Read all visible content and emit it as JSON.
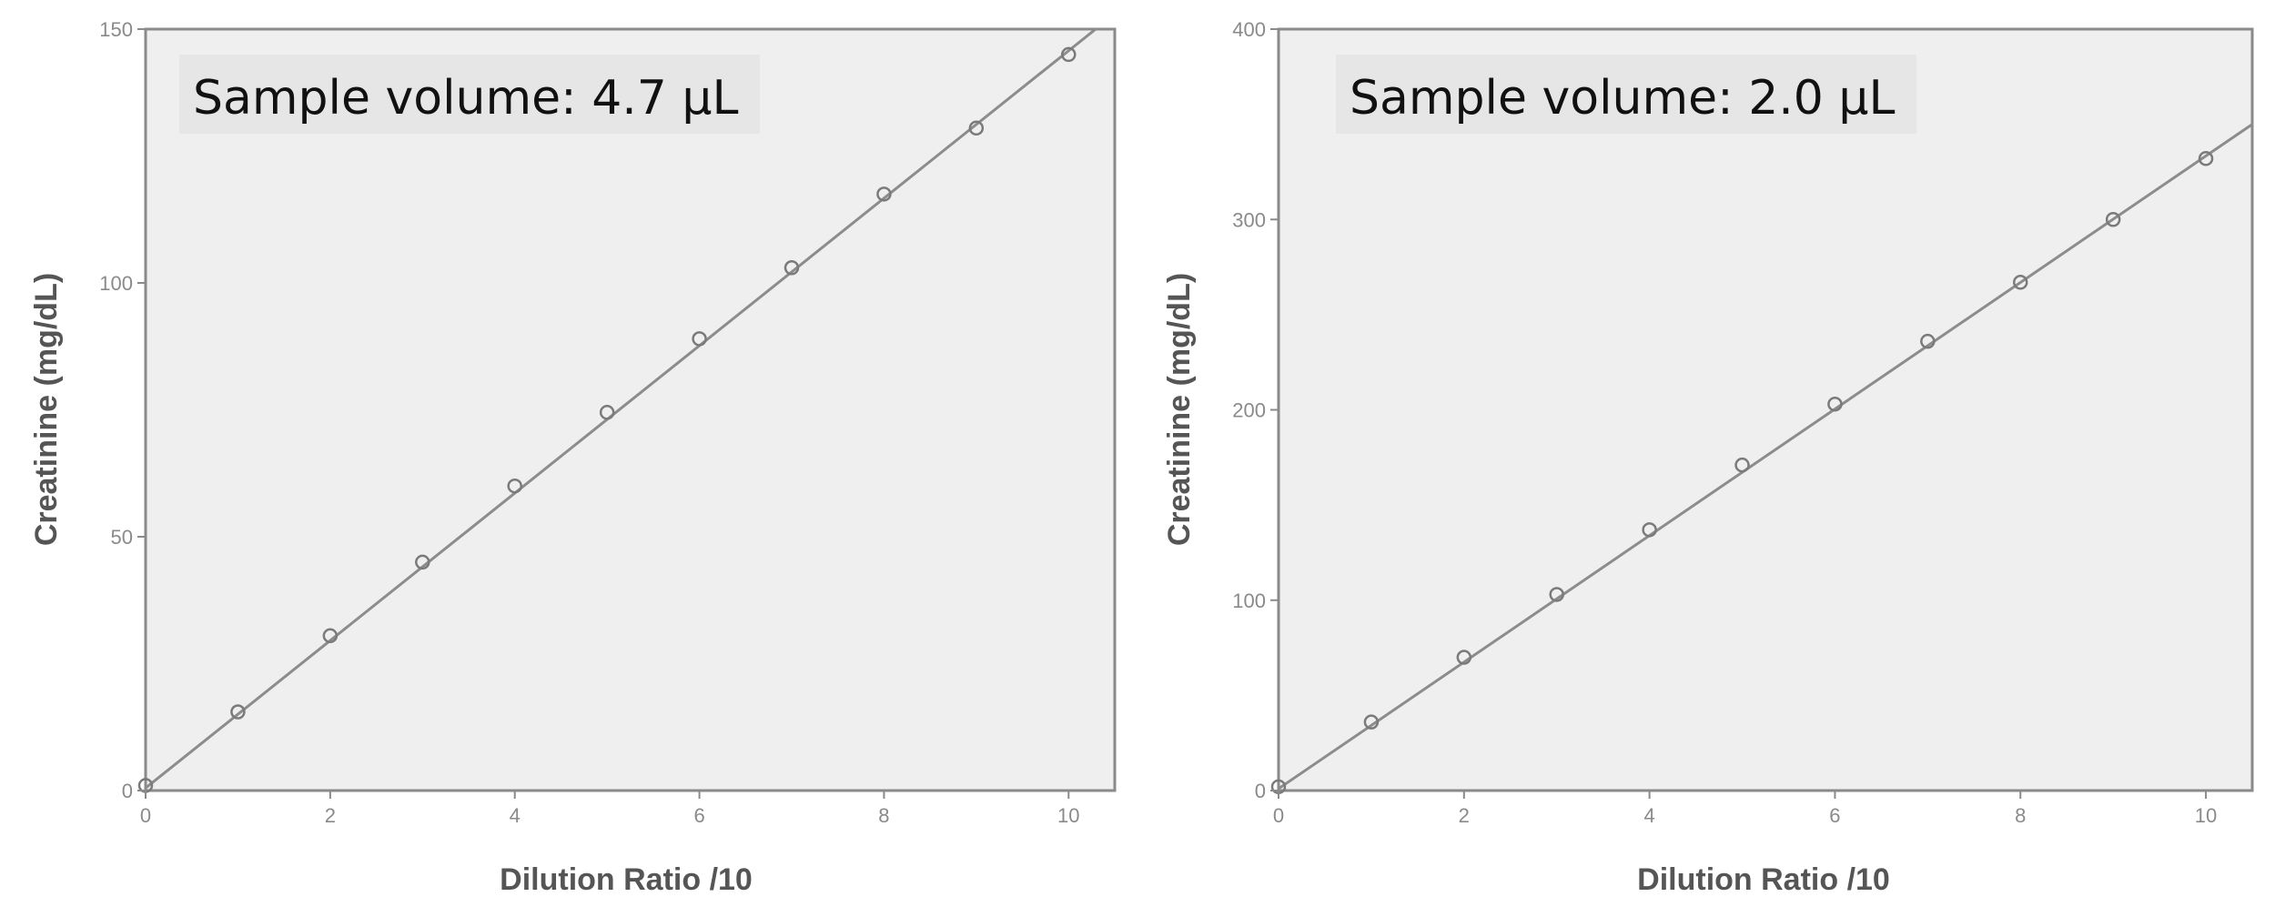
{
  "chart_data": [
    {
      "type": "scatter",
      "annotation": "Sample volume: 4.7 µL",
      "xlabel": "Dilution Ratio /10",
      "ylabel": "Creatinine (mg/dL)",
      "xlim": [
        0,
        10.5
      ],
      "ylim": [
        0,
        150
      ],
      "xticks": [
        0,
        2,
        4,
        6,
        8,
        10
      ],
      "yticks": [
        0,
        50,
        100,
        150
      ],
      "xtick_labels": [
        "0",
        "2",
        "4",
        "6",
        "8",
        "10"
      ],
      "ytick_labels": [
        "0",
        "50",
        "100",
        "150"
      ],
      "x": [
        0,
        1,
        2,
        3,
        4,
        5,
        6,
        7,
        8,
        9,
        10
      ],
      "y": [
        1,
        15.5,
        30.5,
        45,
        60,
        74.5,
        89,
        103,
        117.5,
        130.5,
        145
      ],
      "fit_line": {
        "x": [
          0,
          10.5
        ],
        "y": [
          0.5,
          153
        ]
      },
      "grid": false,
      "colors": {
        "plot_bg": "#efefef",
        "frame": "#8a8a8a",
        "marker": "#7a7a7a",
        "line": "#8c8c8c",
        "annot_bg": "#e6e6e6"
      }
    },
    {
      "type": "scatter",
      "annotation": "Sample volume: 2.0 µL",
      "xlabel": "Dilution Ratio /10",
      "ylabel": "Creatinine (mg/dL)",
      "xlim": [
        0,
        10.5
      ],
      "ylim": [
        0,
        400
      ],
      "xticks": [
        0,
        2,
        4,
        6,
        8,
        10
      ],
      "yticks": [
        0,
        100,
        200,
        300,
        400
      ],
      "xtick_labels": [
        "0",
        "2",
        "4",
        "6",
        "8",
        "10"
      ],
      "ytick_labels": [
        "0",
        "100",
        "200",
        "300",
        "400"
      ],
      "x": [
        0,
        1,
        2,
        3,
        4,
        5,
        6,
        7,
        8,
        9,
        10
      ],
      "y": [
        2,
        36,
        70,
        103,
        137,
        171,
        203,
        236,
        267,
        300,
        332
      ],
      "fit_line": {
        "x": [
          0,
          10.5
        ],
        "y": [
          1,
          350
        ]
      },
      "grid": false,
      "colors": {
        "plot_bg": "#efefef",
        "frame": "#8a8a8a",
        "marker": "#7a7a7a",
        "line": "#8c8c8c",
        "annot_bg": "#e6e6e6"
      }
    }
  ]
}
